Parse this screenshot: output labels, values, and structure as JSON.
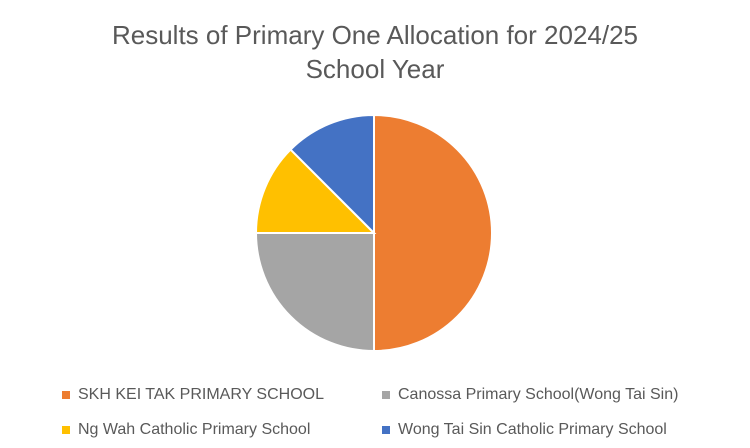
{
  "chart_data": {
    "type": "pie",
    "title": "Results of Primary One Allocation for 2024/25 School Year",
    "categories": [
      "SKH KEI TAK PRIMARY SCHOOL",
      "Canossa Primary School(Wong Tai Sin)",
      "Ng Wah Catholic Primary School",
      "Wong Tai Sin Catholic Primary School"
    ],
    "values": [
      50,
      25,
      12.5,
      12.5
    ],
    "colors": [
      "#ed7d31",
      "#a5a5a5",
      "#ffc000",
      "#4472c4"
    ],
    "legend": "bottom"
  }
}
